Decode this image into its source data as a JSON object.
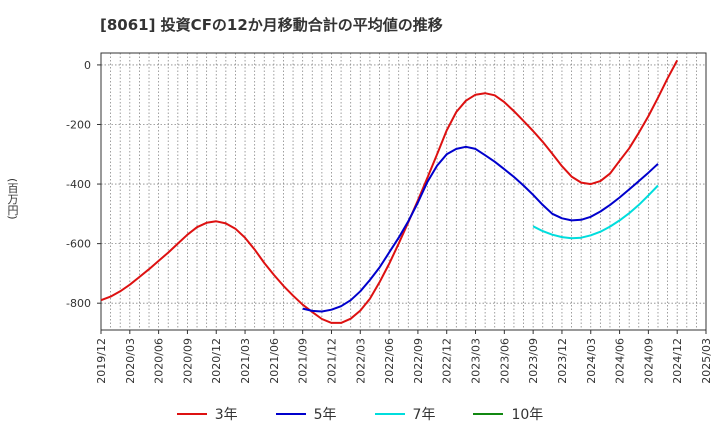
{
  "chart_data": {
    "type": "line",
    "title": "[8061]  投資CFの12か月移動合計の平均値の推移",
    "ylabel": "(百万円)",
    "xlabel": "",
    "ylim": [
      -890,
      40
    ],
    "yticks": [
      0,
      -200,
      -400,
      -600,
      -800
    ],
    "ytick_labels": [
      "0",
      "-200",
      "-400",
      "-600",
      "-800"
    ],
    "xtick_labels": [
      "2019/12",
      "2020/03",
      "2020/06",
      "2020/09",
      "2020/12",
      "2021/03",
      "2021/06",
      "2021/09",
      "2021/12",
      "2022/03",
      "2022/06",
      "2022/09",
      "2022/12",
      "2023/03",
      "2023/06",
      "2023/09",
      "2023/12",
      "2024/03",
      "2024/06",
      "2024/09",
      "2024/12",
      "2025/03"
    ],
    "grid": true,
    "legend_position": "bottom",
    "series": [
      {
        "name": "3年",
        "color": "#dd1111",
        "start_index": 0,
        "values": [
          -790,
          -778,
          -760,
          -738,
          -712,
          -686,
          -658,
          -630,
          -600,
          -570,
          -545,
          -530,
          -525,
          -532,
          -550,
          -580,
          -620,
          -665,
          -705,
          -742,
          -775,
          -805,
          -830,
          -853,
          -866,
          -866,
          -852,
          -825,
          -785,
          -730,
          -668,
          -600,
          -528,
          -455,
          -378,
          -300,
          -220,
          -158,
          -120,
          -100,
          -95,
          -102,
          -125,
          -155,
          -188,
          -222,
          -258,
          -298,
          -340,
          -375,
          -395,
          -400,
          -390,
          -365,
          -322,
          -280,
          -228,
          -172,
          -110,
          -45,
          15
        ]
      },
      {
        "name": "5年",
        "color": "#0000cc",
        "start_index": 21,
        "values": [
          -818,
          -826,
          -828,
          -822,
          -810,
          -790,
          -760,
          -722,
          -680,
          -630,
          -580,
          -525,
          -462,
          -392,
          -338,
          -300,
          -282,
          -275,
          -282,
          -303,
          -325,
          -350,
          -376,
          -405,
          -436,
          -470,
          -500,
          -515,
          -522,
          -520,
          -510,
          -492,
          -470,
          -445,
          -418,
          -390,
          -362,
          -332
        ]
      },
      {
        "name": "7年",
        "color": "#00dddd",
        "start_index": 45,
        "values": [
          -542,
          -558,
          -570,
          -578,
          -582,
          -580,
          -572,
          -560,
          -543,
          -522,
          -498,
          -470,
          -438,
          -405
        ]
      },
      {
        "name": "10年",
        "color": "#118811",
        "start_index": 0,
        "values": []
      }
    ]
  }
}
